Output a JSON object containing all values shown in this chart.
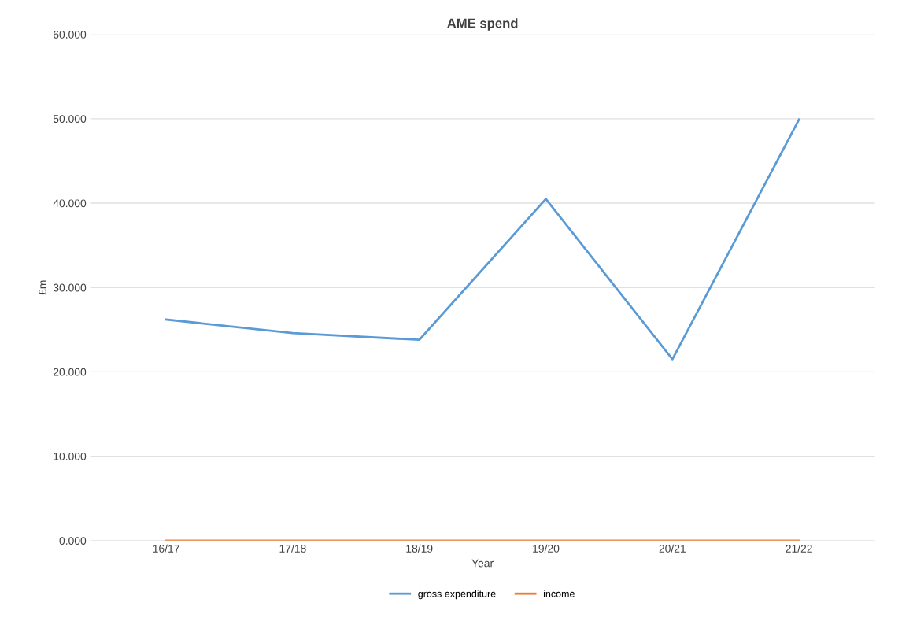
{
  "chart_data": {
    "type": "line",
    "title": "AME spend",
    "xlabel": "Year",
    "ylabel": "£m",
    "categories": [
      "16/17",
      "17/18",
      "18/19",
      "19/20",
      "20/21",
      "21/22"
    ],
    "series": [
      {
        "name": "gross expenditure",
        "color": "#5b9bd5",
        "values": [
          26.2,
          24.6,
          23.8,
          40.5,
          21.5,
          49.9
        ]
      },
      {
        "name": "income",
        "color": "#ed7d31",
        "values": [
          0,
          0,
          0,
          0,
          0,
          0
        ]
      }
    ],
    "ylim": [
      0,
      60
    ],
    "yticks": [
      {
        "value": 0,
        "label": "0.000"
      },
      {
        "value": 10,
        "label": "10.000"
      },
      {
        "value": 20,
        "label": "20.000"
      },
      {
        "value": 30,
        "label": "30.000"
      },
      {
        "value": 40,
        "label": "40.000"
      },
      {
        "value": 50,
        "label": "50.000"
      },
      {
        "value": 60,
        "label": "60.000"
      }
    ],
    "grid": "y",
    "legend": "bottom",
    "marker": "none",
    "line_style": "solid"
  }
}
